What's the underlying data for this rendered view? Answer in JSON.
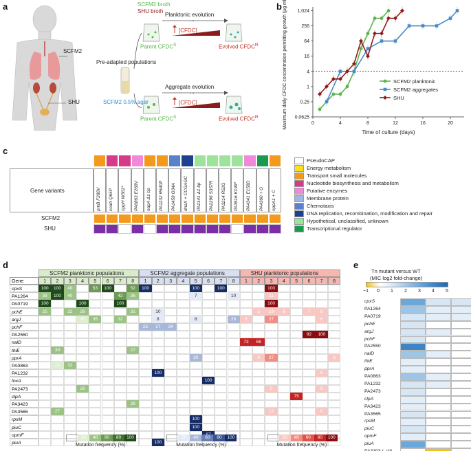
{
  "panel_a": {
    "letter": "a",
    "broth_scfm2": "SCFM2 broth",
    "broth_shu": "SHU broth",
    "body_label_scfm2": "SCFM2",
    "body_label_shu": "SHU",
    "pre_adapted": "Pre-adapted populations",
    "agar": "SCFM2 0.5% agar",
    "planktonic": "Planktonic evolution",
    "aggregate": "Aggregate evolution",
    "parent_top": "Parent CFDC",
    "parent_top_sup": "S",
    "evolved_top": "Evolved CFDC",
    "evolved_top_sup": "R",
    "parent_bot": "Parent CFDC",
    "parent_bot_sup": "S",
    "evolved_bot": "Evolved CFDC",
    "evolved_bot_sup": "R",
    "cfdc_arrow_top": "[CFDC]",
    "cfdc_arrow_bot": "[CFDC]",
    "dots": "..."
  },
  "panel_b": {
    "letter": "b",
    "chart_data": {
      "type": "line",
      "title": "",
      "xlabel": "Time of culture (days)",
      "ylabel": "Maximum daily CFDC concentration permitting growth (μg ml⁻¹)",
      "x_ticks": [
        "0",
        "4",
        "8",
        "12",
        "16",
        "20"
      ],
      "y_ticks": [
        "0.0625",
        "0.25",
        "1",
        "4",
        "16",
        "64",
        "256",
        "1,024"
      ],
      "xlim": [
        0,
        22
      ],
      "ylim_log2": [
        -4,
        10.5
      ],
      "threshold_log2": 2,
      "series": [
        {
          "name": "SCFM2 planktonic",
          "color": "#5ab54b",
          "x": [
            1,
            2,
            3,
            4,
            5,
            6,
            7,
            8,
            9,
            10,
            11
          ],
          "y_log2": [
            -3,
            -2,
            -1,
            -1,
            0,
            2,
            5,
            7,
            9,
            9,
            10
          ]
        },
        {
          "name": "SCFM2 aggregates",
          "color": "#4a8ac9",
          "x": [
            2,
            4,
            6,
            8,
            10,
            12,
            14,
            16,
            18,
            20,
            21
          ],
          "y_log2": [
            -2,
            2,
            2,
            5,
            6,
            6,
            8,
            8,
            8,
            9,
            10
          ]
        },
        {
          "name": "SHU",
          "color": "#8b1c1c",
          "x": [
            1,
            2,
            3,
            4,
            5,
            6,
            7,
            8,
            9,
            10,
            11,
            12,
            13
          ],
          "y_log2": [
            -1,
            0,
            1,
            1,
            2,
            3,
            6,
            4,
            7,
            7,
            9,
            9,
            10
          ]
        }
      ]
    }
  },
  "panel_c": {
    "letter": "c",
    "row_header": "Gene variants",
    "rows": [
      "SCFM2",
      "SHU"
    ],
    "genes": [
      "pntB F288V",
      "codA Q65P",
      "oppH W302*",
      "PA0863 E268V",
      "napA Δ1 bp",
      "PA1232 R640P",
      "PA1459 G34A",
      "dnaX + CCGAGC",
      "PA2141 Δ1 bp",
      "PA2296 S357R",
      "PA3214 R52G",
      "PA3516 K199*",
      "PA4341 E158D",
      "PA4360 + G",
      "oppA1 + C"
    ],
    "legend": [
      {
        "label": "PseudoCAP",
        "color": "#ffffff"
      },
      {
        "label": "Energy metabolism",
        "color": "#f7e21b"
      },
      {
        "label": "Transport small molecules",
        "color": "#f39a1c"
      },
      {
        "label": "Nucleotide biosynthesis and metabolism",
        "color": "#d63b8a"
      },
      {
        "label": "Putative enzymes",
        "color": "#f08ad8"
      },
      {
        "label": "Membrane protein",
        "color": "#9fb8e6"
      },
      {
        "label": "Chemotaxis",
        "color": "#5a82c8"
      },
      {
        "label": "DNA replication, recombination, modification and repair",
        "color": "#1f3f8f"
      },
      {
        "label": "Hypothetical, unclassified, unknown",
        "color": "#9ee39b"
      },
      {
        "label": "Transcriptional regulator",
        "color": "#1a9a50"
      }
    ]
  },
  "panel_d": {
    "letter": "d",
    "header_scfm2_plank": "SCFM2 planktonic populations",
    "header_scfm2_agg": "SCFM2 aggregate populations",
    "header_shu": "SHU planktonic populations",
    "gene_col": "Gene",
    "pop_nums": [
      "1",
      "2",
      "3",
      "4",
      "5",
      "6",
      "7",
      "8"
    ],
    "genes": [
      "cpxS",
      "PA1264",
      "PA0719",
      "pchE",
      "argJ",
      "pchF",
      "PA2550",
      "nalD",
      "thiE",
      "pprA",
      "PA0863",
      "PA1232",
      "foxA",
      "PA2473",
      "clpA",
      "PA3423",
      "PA3565",
      "rpsM",
      "piuC",
      "opmF",
      "piuA"
    ],
    "scale_labels": [
      "20",
      "40",
      "60",
      "80",
      "100"
    ],
    "scale_title": "Mutation frequency (%)"
  },
  "panel_e": {
    "letter": "e",
    "title_line1": "Tn mutant versus WT",
    "title_line2": "(MIC log2 fold-change)",
    "scale_ticks": [
      "−1",
      "0",
      "1",
      "2",
      "3",
      "4",
      "5"
    ],
    "rows": [
      "cpxS",
      "PA1264",
      "PA0719",
      "pchE",
      "argJ",
      "pchF",
      "PA2550",
      "nalD",
      "thiE",
      "pprA",
      "PA0863",
      "PA1232",
      "PA2473",
      "clpA",
      "PA3423",
      "PA3565",
      "rpsM",
      "piuC",
      "opmF",
      "piuA",
      "PA3303 (–ctl)"
    ],
    "cols": [
      "CFDC",
      "CAZ",
      "CEP"
    ]
  }
}
